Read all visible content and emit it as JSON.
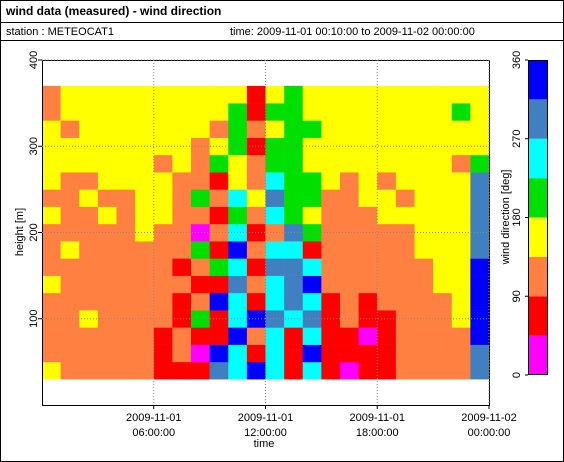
{
  "chart_data": {
    "type": "heatmap",
    "title": "wind data (measured) - wind direction",
    "station": "station : METEOCAT1",
    "period": "time: 2009-11-01 00:10:00 to 2009-11-02 00:00:00",
    "xlabel": "time",
    "ylabel": "height [m]",
    "zlabel": "wind direction [deg]",
    "xlim": [
      "2009-11-01 00:00:00",
      "2009-11-02 00:00:00"
    ],
    "xticks": [
      "2009-11-01 06:00:00",
      "2009-11-01 12:00:00",
      "2009-11-01 18:00:00",
      "2009-11-02 00:00:00"
    ],
    "ylim": [
      0,
      400
    ],
    "yticks": [
      100,
      200,
      300,
      400
    ],
    "zlim": [
      0,
      360
    ],
    "zticks": [
      0,
      90,
      180,
      270,
      360
    ],
    "colors": [
      "#ff00ff",
      "#ff0000",
      "#ff8040",
      "#ffff00",
      "#00e000",
      "#00ffff",
      "#4080c0",
      "#0000ff"
    ],
    "grid": true,
    "x": [
      "2009-11-01 00:30:00",
      "2009-11-01 01:30:00",
      "2009-11-01 02:30:00",
      "2009-11-01 03:30:00",
      "2009-11-01 04:30:00",
      "2009-11-01 05:30:00",
      "2009-11-01 06:30:00",
      "2009-11-01 07:30:00",
      "2009-11-01 08:30:00",
      "2009-11-01 09:30:00",
      "2009-11-01 10:30:00",
      "2009-11-01 11:30:00",
      "2009-11-01 12:30:00",
      "2009-11-01 13:30:00",
      "2009-11-01 14:30:00",
      "2009-11-01 15:30:00",
      "2009-11-01 16:30:00",
      "2009-11-01 17:30:00",
      "2009-11-01 18:30:00",
      "2009-11-01 19:30:00",
      "2009-11-01 20:30:00",
      "2009-11-01 21:30:00",
      "2009-11-01 22:30:00",
      "2009-11-01 23:30:00"
    ],
    "y": [
      40,
      60,
      80,
      100,
      120,
      140,
      160,
      180,
      200,
      220,
      240,
      260,
      280,
      300,
      320,
      340,
      360
    ],
    "z": [
      [
        160,
        110,
        110,
        110,
        110,
        110,
        70,
        70,
        70,
        290,
        250,
        340,
        250,
        70,
        250,
        70,
        20,
        70,
        70,
        110,
        110,
        110,
        110,
        290
      ],
      [
        110,
        110,
        110,
        110,
        110,
        110,
        70,
        110,
        20,
        340,
        250,
        70,
        250,
        70,
        340,
        70,
        70,
        70,
        70,
        110,
        110,
        110,
        110,
        290
      ],
      [
        110,
        110,
        110,
        110,
        110,
        110,
        70,
        110,
        70,
        70,
        340,
        110,
        250,
        70,
        250,
        70,
        70,
        20,
        70,
        110,
        110,
        110,
        110,
        340
      ],
      [
        110,
        110,
        160,
        110,
        110,
        110,
        110,
        70,
        200,
        70,
        250,
        340,
        290,
        250,
        290,
        70,
        110,
        70,
        70,
        110,
        110,
        110,
        160,
        340
      ],
      [
        110,
        110,
        110,
        110,
        110,
        110,
        110,
        70,
        110,
        340,
        250,
        70,
        250,
        290,
        250,
        70,
        110,
        70,
        110,
        110,
        110,
        110,
        160,
        340
      ],
      [
        160,
        110,
        110,
        110,
        110,
        110,
        110,
        110,
        70,
        70,
        290,
        110,
        250,
        290,
        340,
        110,
        110,
        110,
        110,
        110,
        110,
        160,
        160,
        340
      ],
      [
        110,
        110,
        110,
        110,
        110,
        110,
        110,
        70,
        110,
        200,
        250,
        70,
        290,
        290,
        250,
        110,
        110,
        110,
        110,
        110,
        110,
        160,
        160,
        340
      ],
      [
        110,
        160,
        110,
        110,
        110,
        110,
        110,
        110,
        200,
        70,
        340,
        110,
        250,
        250,
        70,
        110,
        110,
        110,
        110,
        110,
        160,
        160,
        160,
        290
      ],
      [
        110,
        110,
        110,
        110,
        110,
        160,
        110,
        110,
        20,
        110,
        250,
        70,
        110,
        290,
        200,
        110,
        110,
        110,
        110,
        110,
        160,
        160,
        160,
        290
      ],
      [
        160,
        110,
        110,
        160,
        110,
        160,
        160,
        110,
        110,
        70,
        200,
        110,
        250,
        200,
        160,
        110,
        110,
        110,
        160,
        160,
        160,
        160,
        160,
        290
      ],
      [
        110,
        110,
        160,
        110,
        110,
        160,
        160,
        110,
        200,
        110,
        250,
        160,
        290,
        200,
        200,
        110,
        110,
        160,
        160,
        110,
        160,
        160,
        160,
        290
      ],
      [
        160,
        110,
        110,
        160,
        160,
        160,
        160,
        110,
        110,
        70,
        160,
        110,
        250,
        200,
        200,
        160,
        110,
        160,
        110,
        160,
        160,
        160,
        160,
        290
      ],
      [
        160,
        160,
        160,
        160,
        160,
        160,
        110,
        160,
        110,
        200,
        160,
        110,
        200,
        200,
        160,
        160,
        160,
        160,
        160,
        160,
        160,
        160,
        110,
        200
      ],
      [
        160,
        160,
        160,
        160,
        160,
        160,
        160,
        160,
        110,
        160,
        200,
        70,
        200,
        200,
        160,
        160,
        160,
        160,
        160,
        160,
        160,
        160,
        160,
        160
      ],
      [
        160,
        110,
        160,
        160,
        160,
        160,
        160,
        160,
        160,
        110,
        200,
        110,
        160,
        200,
        200,
        160,
        160,
        160,
        160,
        160,
        160,
        160,
        160,
        160
      ],
      [
        110,
        160,
        160,
        160,
        160,
        160,
        160,
        160,
        160,
        160,
        200,
        70,
        200,
        200,
        160,
        160,
        160,
        160,
        160,
        160,
        160,
        160,
        200,
        160
      ],
      [
        110,
        160,
        160,
        160,
        160,
        160,
        160,
        160,
        160,
        160,
        160,
        70,
        160,
        200,
        160,
        160,
        160,
        160,
        160,
        160,
        160,
        160,
        160,
        160
      ]
    ]
  }
}
